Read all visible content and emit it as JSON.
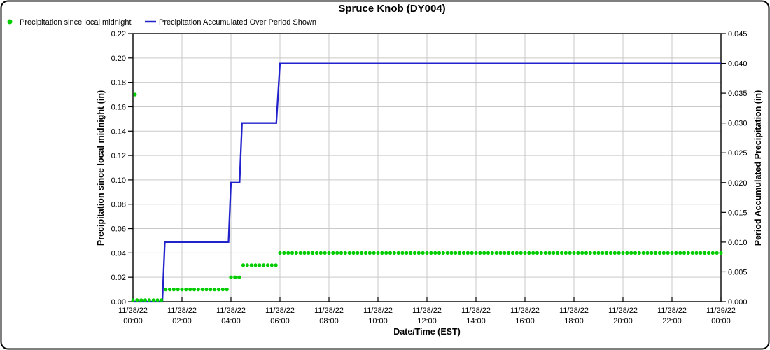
{
  "chart_data": {
    "type": "line",
    "title": "Spruce Knob (DY004)",
    "xlabel": "Date/Time (EST)",
    "ylabel_left": "Precipitation since local midnight (in)",
    "ylabel_right": "Period Accumulated Precipitation (in)",
    "grid": true,
    "legend_position": "top-left",
    "x_axis": {
      "start_hour": 0,
      "end_hour": 24,
      "tick_interval_hours": 2,
      "ticks": [
        {
          "date": "11/28/22",
          "time": "00:00"
        },
        {
          "date": "11/28/22",
          "time": "02:00"
        },
        {
          "date": "11/28/22",
          "time": "04:00"
        },
        {
          "date": "11/28/22",
          "time": "06:00"
        },
        {
          "date": "11/28/22",
          "time": "08:00"
        },
        {
          "date": "11/28/22",
          "time": "10:00"
        },
        {
          "date": "11/28/22",
          "time": "12:00"
        },
        {
          "date": "11/28/22",
          "time": "14:00"
        },
        {
          "date": "11/28/22",
          "time": "16:00"
        },
        {
          "date": "11/28/22",
          "time": "18:00"
        },
        {
          "date": "11/28/22",
          "time": "20:00"
        },
        {
          "date": "11/28/22",
          "time": "22:00"
        },
        {
          "date": "11/29/22",
          "time": "00:00"
        }
      ]
    },
    "y_axis_left": {
      "min": 0,
      "max": 0.22,
      "tick_step": 0.02,
      "decimals": 2
    },
    "y_axis_right": {
      "min": 0,
      "max": 0.045,
      "tick_step": 0.005,
      "decimals": 3
    },
    "series": [
      {
        "name": "Precipitation since local midnight",
        "style": "scatter",
        "axis": "left",
        "color": "#00cc00",
        "sample_interval_minutes": 10,
        "dot_runs": [
          {
            "start_minute": 0,
            "end_minute": 70,
            "value": 0.0
          },
          {
            "start_minute": 80,
            "end_minute": 230,
            "value": 0.01
          },
          {
            "start_minute": 240,
            "end_minute": 260,
            "value": 0.02
          },
          {
            "start_minute": 270,
            "end_minute": 350,
            "value": 0.03
          },
          {
            "start_minute": 360,
            "end_minute": 1440,
            "value": 0.04
          }
        ],
        "extra_points": [
          {
            "minute": 5,
            "value": 0.17
          }
        ]
      },
      {
        "name": "Precipitation Accumulated Over Period Shown",
        "style": "step-line",
        "axis": "right",
        "color": "#2222cc",
        "points": [
          [
            0,
            0.0
          ],
          [
            1.2,
            0.0
          ],
          [
            1.3,
            0.01
          ],
          [
            3.9,
            0.01
          ],
          [
            4.0,
            0.02
          ],
          [
            4.35,
            0.02
          ],
          [
            4.45,
            0.03
          ],
          [
            5.85,
            0.03
          ],
          [
            6.0,
            0.04
          ],
          [
            24,
            0.04
          ]
        ]
      }
    ],
    "colors": {
      "grid": "#c9c9c9",
      "axis": "#000000",
      "background": "#ffffff",
      "border": "#000000"
    }
  }
}
